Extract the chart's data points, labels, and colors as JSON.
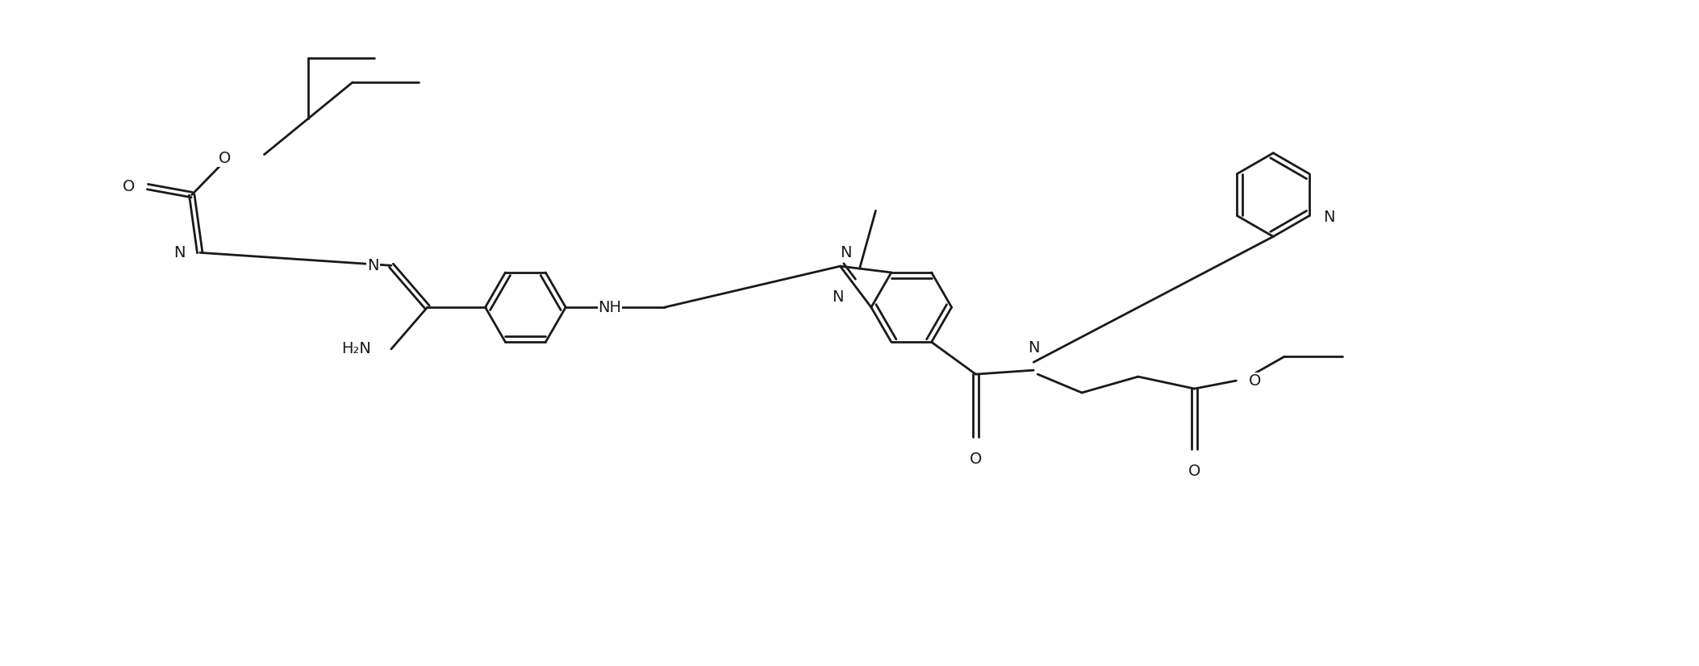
{
  "bg": "#ffffff",
  "lc": "#1a1a1a",
  "lw": 2.0,
  "fs": 14,
  "figsize": [
    21.06,
    8.26
  ],
  "dpi": 100,
  "xlim": [
    0,
    21.06
  ],
  "ylim": [
    0,
    8.26
  ]
}
